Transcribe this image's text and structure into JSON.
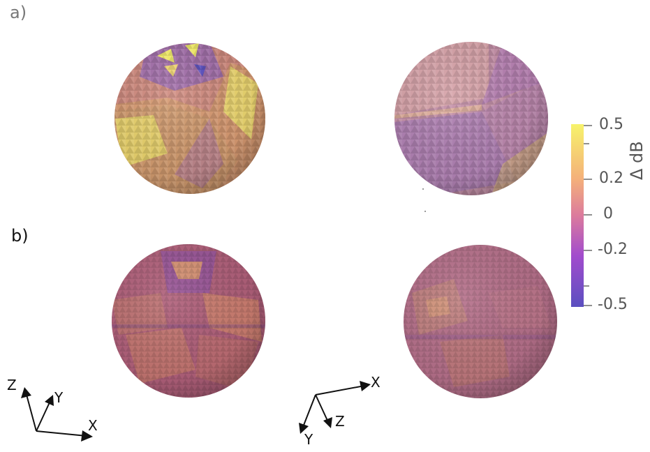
{
  "panels": {
    "a": "a)",
    "b": "b)"
  },
  "colorbar": {
    "title": "Δ dB",
    "ticks": [
      "0.5",
      "0.2",
      "0",
      "-0.2",
      "-0.5"
    ],
    "colors": [
      "#f7f36b",
      "#f4b07a",
      "#dc7b9d",
      "#a24ccd",
      "#5b4fc0"
    ]
  },
  "axes_left": {
    "x": "X",
    "y": "Y",
    "z": "Z"
  },
  "axes_right": {
    "x": "X",
    "y": "Y",
    "z": "Z"
  }
}
